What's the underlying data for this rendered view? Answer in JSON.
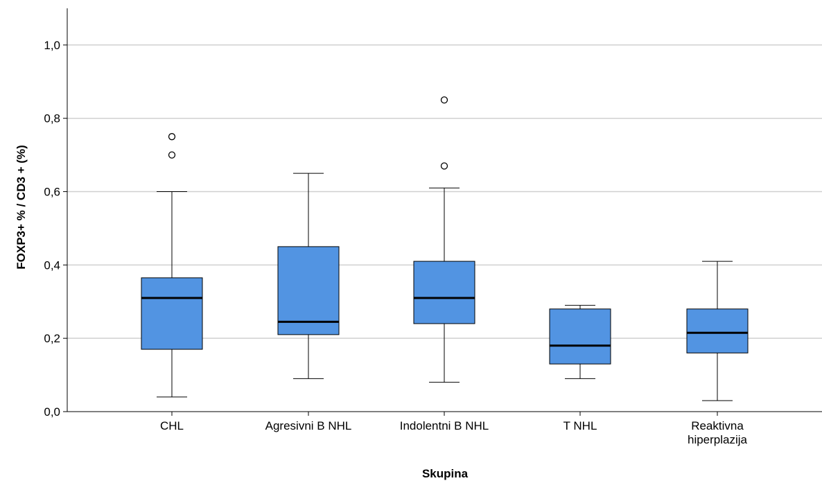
{
  "chart_data": {
    "type": "boxplot",
    "title": "",
    "xlabel": "Skupina",
    "ylabel": "FOXP3+ % / CD3 + (%)",
    "ylim": [
      0,
      1.1
    ],
    "yticks": [
      "0,0",
      "0,2",
      "0,4",
      "0,6",
      "0,8",
      "1,0"
    ],
    "grid": true,
    "box_color": "#5294e2",
    "categories": [
      [
        "CHL"
      ],
      [
        "Agresivni B NHL"
      ],
      [
        "Indolentni B NHL"
      ],
      [
        "T NHL"
      ],
      [
        "Reaktivna",
        "hiperplazija"
      ]
    ],
    "boxes": [
      {
        "whisker_low": 0.04,
        "q1": 0.17,
        "median": 0.31,
        "q3": 0.365,
        "whisker_high": 0.6,
        "outliers": [
          0.7,
          0.75
        ]
      },
      {
        "whisker_low": 0.09,
        "q1": 0.21,
        "median": 0.245,
        "q3": 0.45,
        "whisker_high": 0.65,
        "outliers": []
      },
      {
        "whisker_low": 0.08,
        "q1": 0.24,
        "median": 0.31,
        "q3": 0.41,
        "whisker_high": 0.61,
        "outliers": [
          0.67,
          0.85
        ]
      },
      {
        "whisker_low": 0.09,
        "q1": 0.13,
        "median": 0.18,
        "q3": 0.28,
        "whisker_high": 0.29,
        "outliers": []
      },
      {
        "whisker_low": 0.03,
        "q1": 0.16,
        "median": 0.215,
        "q3": 0.28,
        "whisker_high": 0.41,
        "outliers": []
      }
    ]
  }
}
